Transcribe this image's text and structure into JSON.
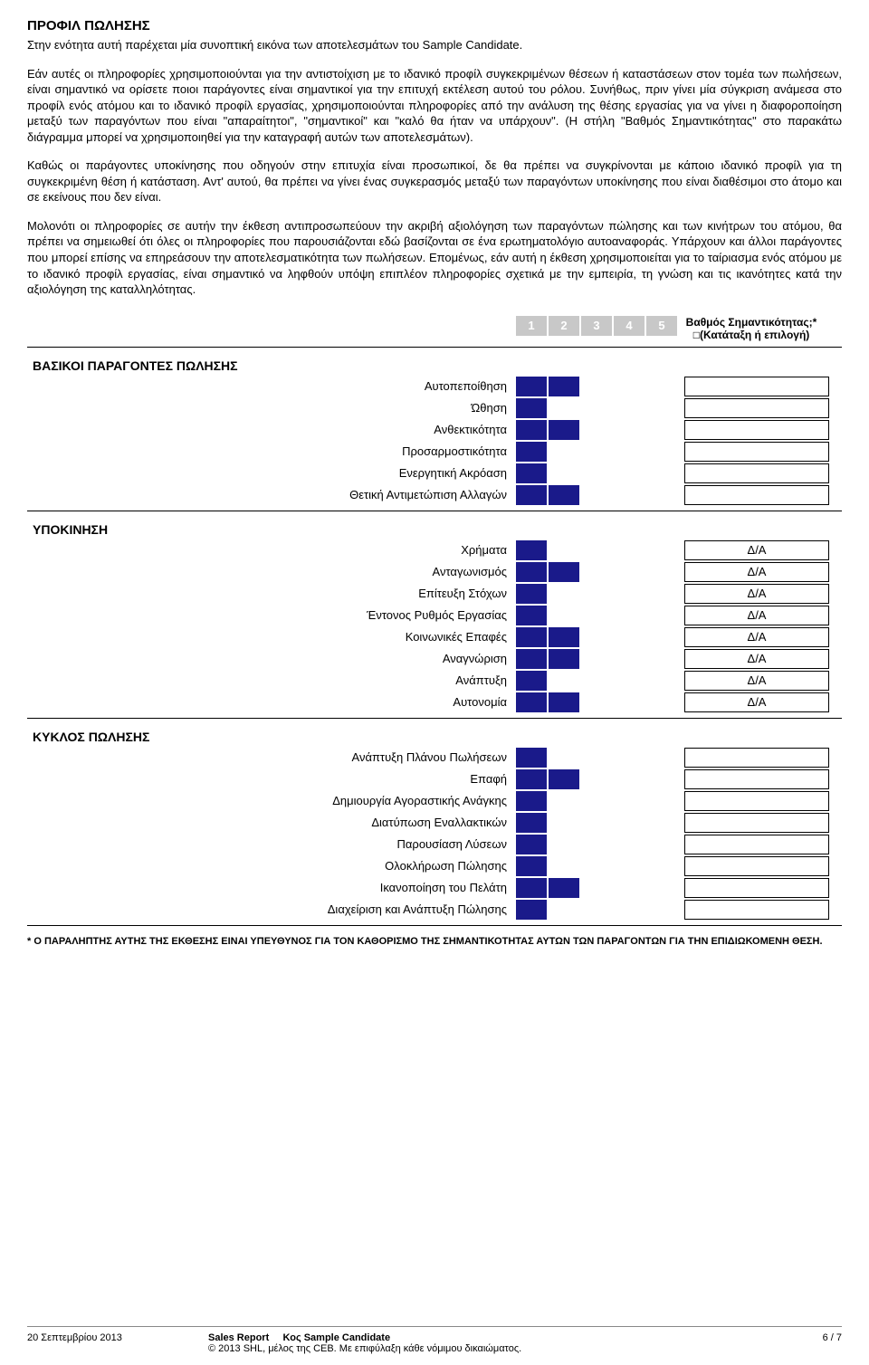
{
  "title": "ΠΡΟΦΙΛ ΠΩΛΗΣΗΣ",
  "paragraphs": [
    "Στην ενότητα αυτή παρέχεται μία συνοπτική εικόνα των αποτελεσμάτων του Sample Candidate.",
    "Εάν αυτές οι πληροφορίες χρησιμοποιούνται για την αντιστοίχιση με το ιδανικό προφίλ συγκεκριμένων θέσεων ή καταστάσεων στον τομέα των πωλήσεων, είναι σημαντικό να ορίσετε ποιοι παράγοντες είναι σημαντικοί για την επιτυχή εκτέλεση αυτού του ρόλου. Συνήθως, πριν γίνει μία σύγκριση ανάμεσα στο προφίλ ενός ατόμου και το ιδανικό προφίλ εργασίας, χρησιμοποιούνται πληροφορίες από την ανάλυση της θέσης εργασίας για να γίνει η διαφοροποίηση μεταξύ των παραγόντων που είναι \"απαραίτητοι\", \"σημαντικοί\" και \"καλό θα ήταν να υπάρχουν\". (Η στήλη \"Βαθμός Σημαντικότητας\" στο παρακάτω διάγραμμα μπορεί να χρησιμοποιηθεί για την καταγραφή αυτών των αποτελεσμάτων).",
    "Καθώς οι παράγοντες υποκίνησης που οδηγούν στην επιτυχία είναι προσωπικοί, δε θα πρέπει να συγκρίνονται με κάποιο ιδανικό προφίλ για τη συγκεκριμένη θέση ή κατάσταση. Αντ' αυτού, θα πρέπει να γίνει ένας συγκερασμός μεταξύ των παραγόντων υποκίνησης που είναι διαθέσιμοι στο άτομο και σε εκείνους που δεν είναι.",
    "Μολονότι οι πληροφορίες σε αυτήν την έκθεση αντιπροσωπεύουν την ακριβή αξιολόγηση των παραγόντων πώλησης και των κινήτρων του ατόμου, θα πρέπει να σημειωθεί ότι όλες οι πληροφορίες που παρουσιάζονται εδώ βασίζονται σε ένα ερωτηματολόγιο αυτοαναφοράς. Υπάρχουν και άλλοι παράγοντες που μπορεί επίσης να επηρεάσουν την αποτελεσματικότητα των πωλήσεων. Επομένως, εάν αυτή η έκθεση χρησιμοποιείται για το ταίριασμα ενός ατόμου με το ιδανικό προφίλ εργασίας, είναι σημαντικό να ληφθούν υπόψη επιπλέον πληροφορίες σχετικά με την εμπειρία, τη γνώση και τις ικανότητες κατά την αξιολόγηση της καταλληλότητας."
  ],
  "scale": [
    "1",
    "2",
    "3",
    "4",
    "5"
  ],
  "importance_header": "Βαθμός Σημαντικότητας;* □(Κατάταξη ή επιλογή)",
  "sections": [
    {
      "label": "ΒΑΣΙΚΟΙ ΠΑΡΑΓΟΝΤΕΣ ΠΩΛΗΣΗΣ",
      "rows": [
        {
          "label": "Αυτοπεποίθηση",
          "value": 2,
          "imp": ""
        },
        {
          "label": "Ώθηση",
          "value": 1,
          "imp": ""
        },
        {
          "label": "Ανθεκτικότητα",
          "value": 2,
          "imp": ""
        },
        {
          "label": "Προσαρμοστικότητα",
          "value": 1,
          "imp": ""
        },
        {
          "label": "Ενεργητική Ακρόαση",
          "value": 1,
          "imp": ""
        },
        {
          "label": "Θετική Αντιμετώπιση Αλλαγών",
          "value": 2,
          "imp": ""
        }
      ]
    },
    {
      "label": "ΥΠΟΚΙΝΗΣΗ",
      "rows": [
        {
          "label": "Χρήματα",
          "value": 1,
          "imp": "Δ/Α"
        },
        {
          "label": "Ανταγωνισμός",
          "value": 2,
          "imp": "Δ/Α"
        },
        {
          "label": "Επίτευξη Στόχων",
          "value": 1,
          "imp": "Δ/Α"
        },
        {
          "label": "Έντονος Ρυθμός Εργασίας",
          "value": 1,
          "imp": "Δ/Α"
        },
        {
          "label": "Κοινωνικές Επαφές",
          "value": 2,
          "imp": "Δ/Α"
        },
        {
          "label": "Αναγνώριση",
          "value": 2,
          "imp": "Δ/Α"
        },
        {
          "label": "Ανάπτυξη",
          "value": 1,
          "imp": "Δ/Α"
        },
        {
          "label": "Αυτονομία",
          "value": 2,
          "imp": "Δ/Α"
        }
      ]
    },
    {
      "label": "ΚΥΚΛΟΣ ΠΩΛΗΣΗΣ",
      "rows": [
        {
          "label": "Ανάπτυξη Πλάνου Πωλήσεων",
          "value": 1,
          "imp": ""
        },
        {
          "label": "Επαφή",
          "value": 2,
          "imp": ""
        },
        {
          "label": "Δημιουργία Αγοραστικής Ανάγκης",
          "value": 1,
          "imp": ""
        },
        {
          "label": "Διατύπωση Εναλλακτικών",
          "value": 1,
          "imp": ""
        },
        {
          "label": "Παρουσίαση Λύσεων",
          "value": 1,
          "imp": ""
        },
        {
          "label": "Ολοκλήρωση Πώλησης",
          "value": 1,
          "imp": ""
        },
        {
          "label": "Ικανοποίηση του Πελάτη",
          "value": 2,
          "imp": ""
        },
        {
          "label": "Διαχείριση και Ανάπτυξη Πώλησης",
          "value": 1,
          "imp": ""
        }
      ]
    }
  ],
  "footnote": "* Ο ΠΑΡΑΛΗΠΤΗΣ ΑΥΤΗΣ ΤΗΣ ΕΚΘΕΣΗΣ ΕΙΝΑΙ ΥΠΕΥΘΥΝΟΣ ΓΙΑ ΤΟΝ ΚΑΘΟΡΙΣΜΟ ΤΗΣ ΣΗΜΑΝΤΙΚΟΤΗΤΑΣ ΑΥΤΩΝ ΤΩΝ ΠΑΡΑΓΟΝΤΩΝ ΓΙΑ ΤΗΝ ΕΠΙΔΙΩΚΟΜΕΝΗ ΘΕΣΗ.",
  "footer": {
    "date": "20 Σεπτεμβρίου 2013",
    "report": "Sales Report",
    "candidate_prefix": "Κος ",
    "candidate": "Sample Candidate",
    "copyright": "© 2013 SHL, μέλος της CEB. Με επιφύλαξη κάθε νόμιμου δικαιώματος.",
    "page": "6 / 7"
  },
  "colors": {
    "bar_fill": "#1a1a8a",
    "scale_bg": "#c8c8c8"
  }
}
